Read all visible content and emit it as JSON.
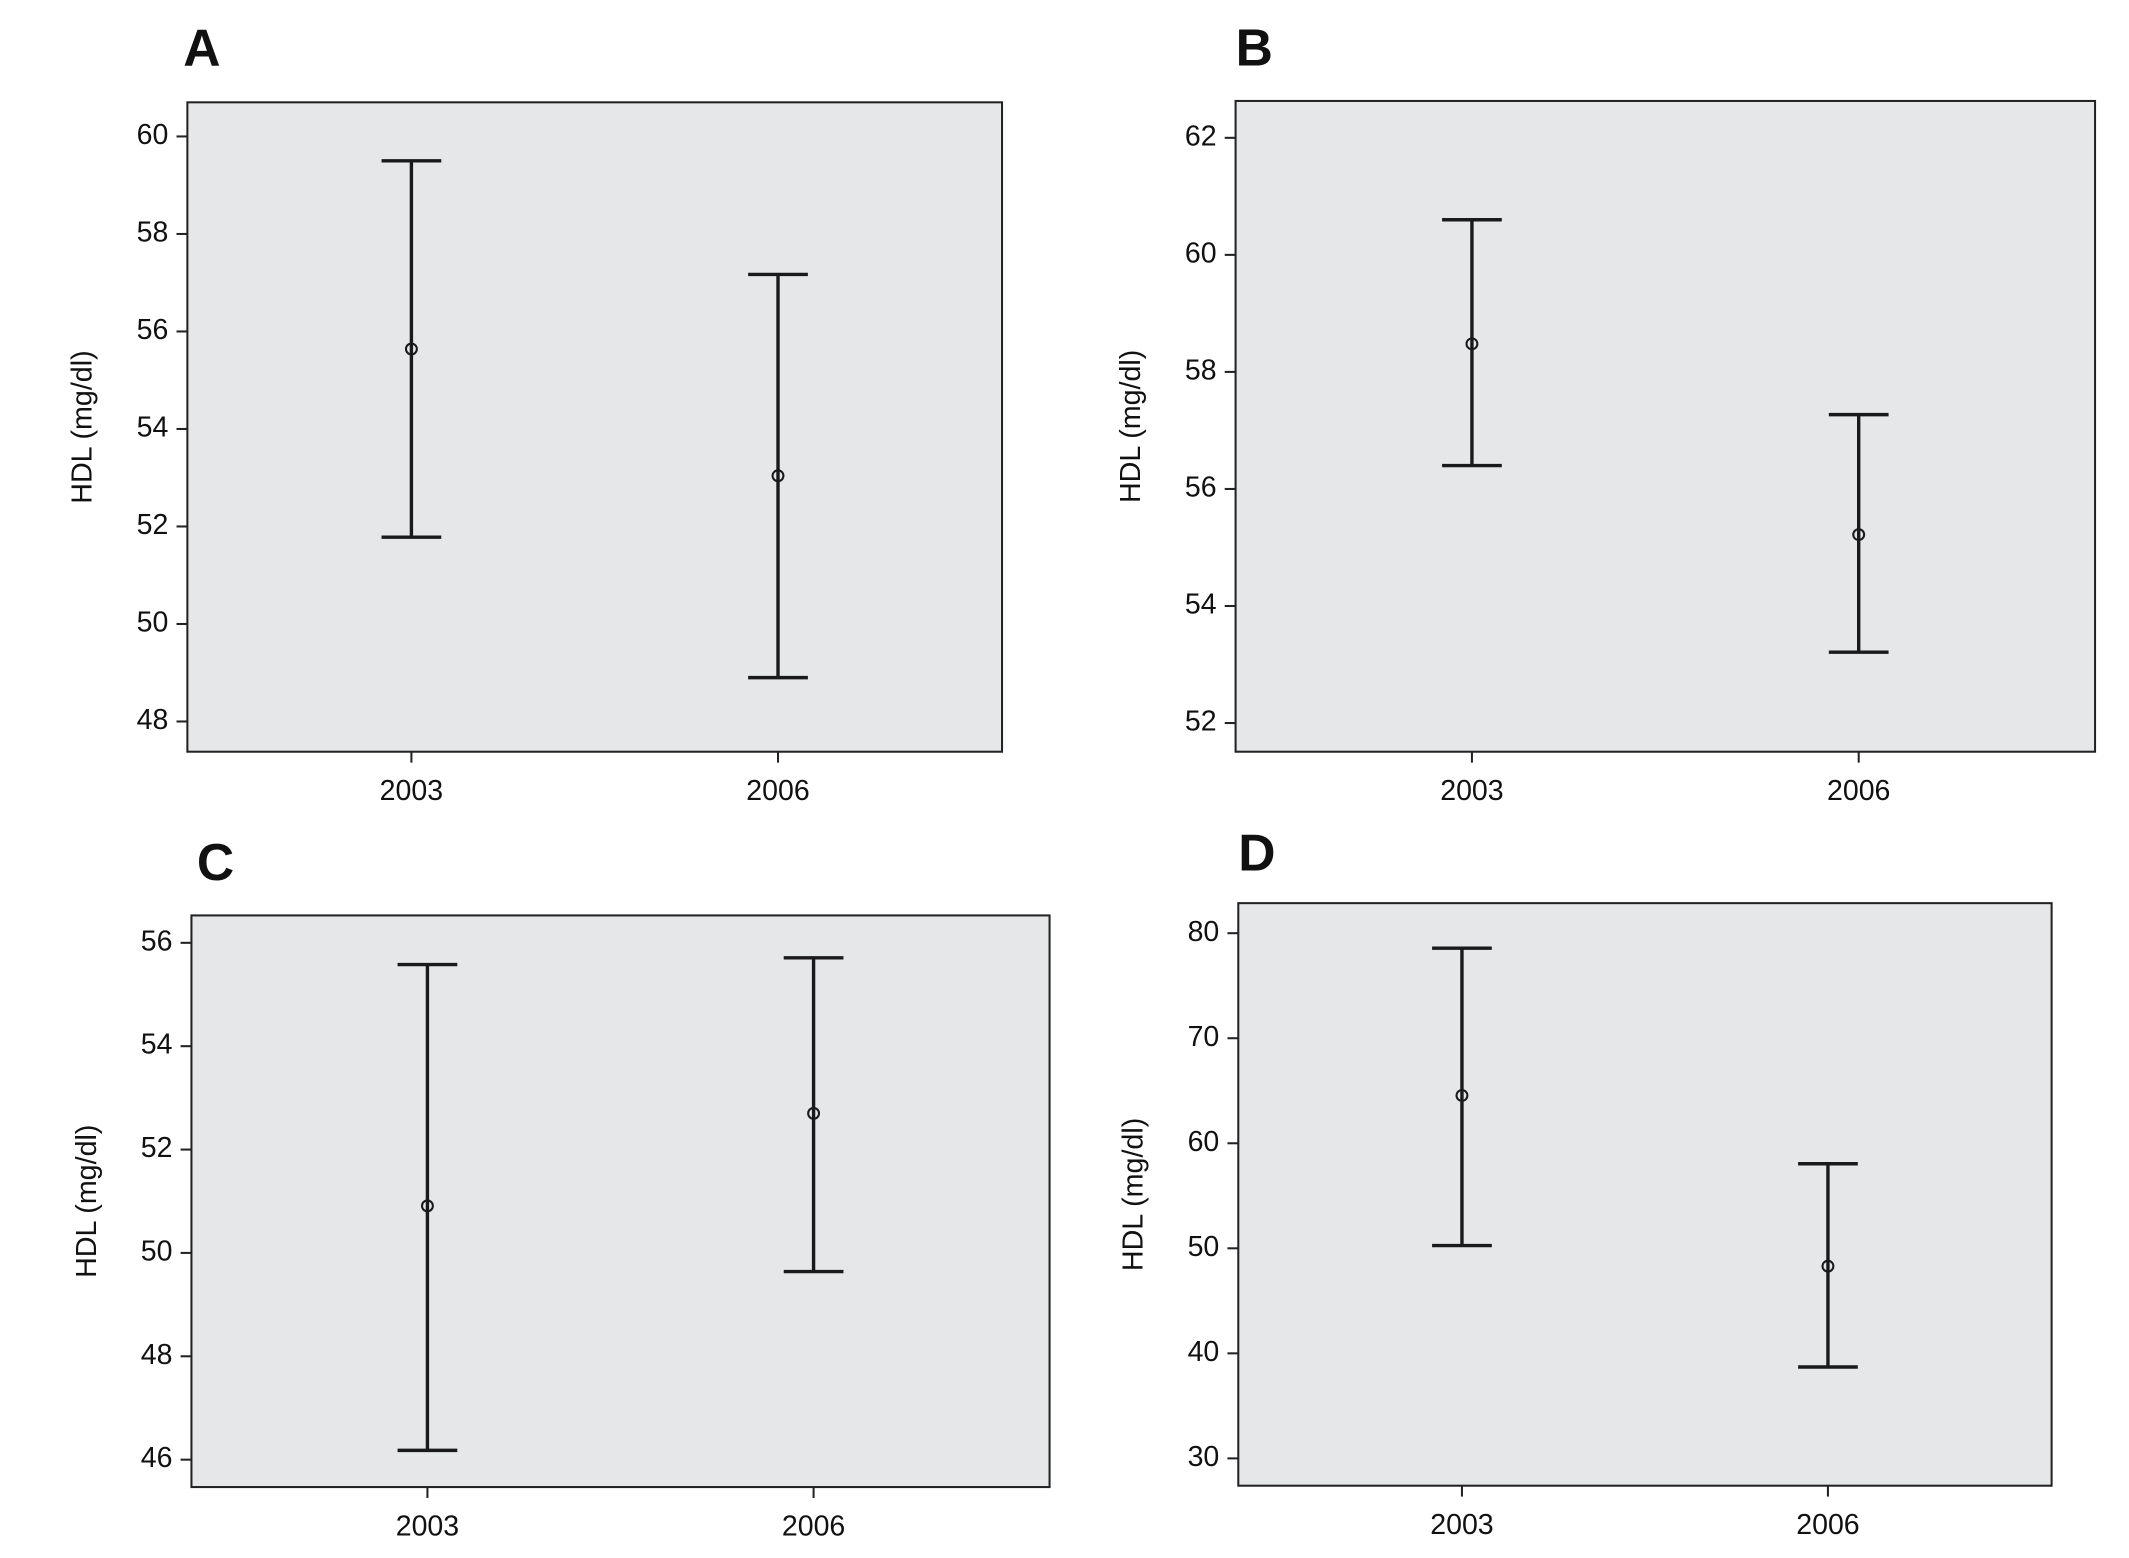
{
  "chart_data": [
    {
      "type": "errorbar",
      "title": "A",
      "y_label": "HDL (mg/dl)",
      "categories": [
        "2003",
        "2006"
      ],
      "values": [
        55.64,
        53.04
      ],
      "lower": [
        51.78,
        48.9
      ],
      "upper": [
        59.5,
        57.17
      ],
      "color": "#1a1a1a",
      "ylim": [
        47.38,
        60.7
      ],
      "yticks": [
        48,
        50,
        52,
        54,
        56,
        58,
        60
      ]
    },
    {
      "type": "errorbar",
      "title": "B",
      "y_label": "HDL (mg/dl)",
      "categories": [
        "2003",
        "2006"
      ],
      "values": [
        58.48,
        55.22
      ],
      "lower": [
        56.4,
        53.21
      ],
      "upper": [
        60.6,
        57.27
      ],
      "color": "#1a1a1a",
      "ylim": [
        51.51,
        62.63
      ],
      "yticks": [
        52,
        54,
        56,
        58,
        60,
        62
      ]
    },
    {
      "type": "errorbar",
      "title": "C",
      "y_label": "HDL (mg/dl)",
      "categories": [
        "2003",
        "2006"
      ],
      "values": [
        50.91,
        52.7
      ],
      "lower": [
        46.18,
        49.64
      ],
      "upper": [
        55.58,
        55.71
      ],
      "color": "#1a1a1a",
      "ylim": [
        45.47,
        56.53
      ],
      "yticks": [
        46,
        48,
        50,
        52,
        54,
        56
      ]
    },
    {
      "type": "errorbar",
      "title": "D",
      "y_label": "HDL (mg/dl)",
      "categories": [
        "2003",
        "2006"
      ],
      "values": [
        64.55,
        48.3
      ],
      "lower": [
        50.26,
        38.7
      ],
      "upper": [
        78.57,
        58.05
      ],
      "color": "#1a1a1a",
      "ylim": [
        27.4,
        82.86
      ],
      "yticks": [
        30,
        40,
        50,
        60,
        70,
        80
      ]
    }
  ]
}
